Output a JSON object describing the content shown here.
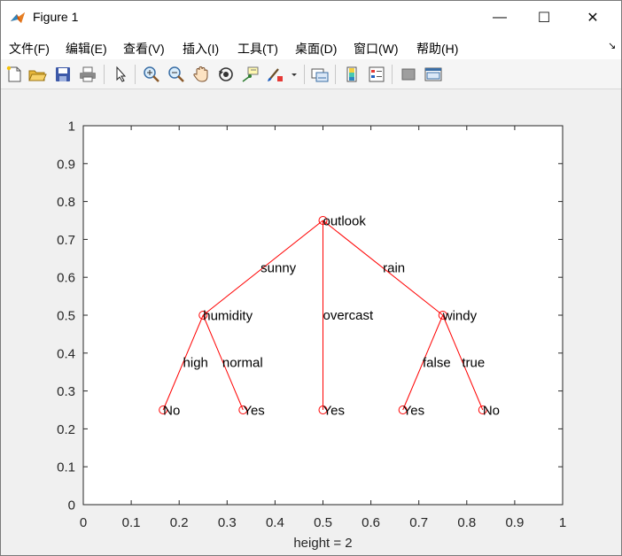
{
  "window": {
    "title": "Figure 1",
    "controls": {
      "minimize": "—",
      "maximize": "☐",
      "close": "✕"
    }
  },
  "menu": {
    "items": [
      "文件(F)",
      "编辑(E)",
      "查看(V)",
      "插入(I)",
      "工具(T)",
      "桌面(D)",
      "窗口(W)",
      "帮助(H)"
    ],
    "overflow_arrow": "↘"
  },
  "toolbar": {
    "buttons": [
      "new-figure-icon",
      "open-file-icon",
      "save-icon",
      "print-icon",
      "edit-plot-arrow-icon",
      "zoom-in-icon",
      "zoom-out-icon",
      "pan-hand-icon",
      "rotate-3d-icon",
      "data-cursor-icon",
      "brush-icon",
      "brush-dropdown-icon",
      "link-plot-icon",
      "colorbar-icon",
      "legend-icon",
      "hide-plot-tools-icon",
      "show-plot-tools-icon"
    ]
  },
  "colors": {
    "tree": "#ff0000",
    "axes": "#262626",
    "grid_bg": "#ffffff",
    "figure_bg": "#f0f0f0"
  },
  "chart_data": {
    "type": "scatter",
    "title": "",
    "xlabel": "height = 2",
    "ylabel": "",
    "xlim": [
      0,
      1
    ],
    "ylim": [
      0,
      1
    ],
    "xticks": [
      "0",
      "0.1",
      "0.2",
      "0.3",
      "0.4",
      "0.5",
      "0.6",
      "0.7",
      "0.8",
      "0.9",
      "1"
    ],
    "yticks": [
      "0",
      "0.1",
      "0.2",
      "0.3",
      "0.4",
      "0.5",
      "0.6",
      "0.7",
      "0.8",
      "0.9",
      "1"
    ],
    "grid": false,
    "nodes": [
      {
        "id": "outlook",
        "label": "outlook",
        "x": 0.5,
        "y": 0.75
      },
      {
        "id": "humidity",
        "label": "humidity",
        "x": 0.25,
        "y": 0.5
      },
      {
        "id": "overcast-yes",
        "label": "Yes",
        "x": 0.5,
        "y": 0.25
      },
      {
        "id": "windy",
        "label": "windy",
        "x": 0.75,
        "y": 0.5
      },
      {
        "id": "high-no",
        "label": "No",
        "x": 0.1667,
        "y": 0.25
      },
      {
        "id": "normal-yes",
        "label": "Yes",
        "x": 0.3333,
        "y": 0.25
      },
      {
        "id": "false-yes",
        "label": "Yes",
        "x": 0.6667,
        "y": 0.25
      },
      {
        "id": "true-no",
        "label": "No",
        "x": 0.8333,
        "y": 0.25
      }
    ],
    "edges": [
      {
        "from": "outlook",
        "to": "humidity",
        "label": "sunny",
        "lx": 0.37,
        "ly": 0.625
      },
      {
        "from": "outlook",
        "to": "overcast-yes",
        "label": "overcast",
        "lx": 0.5,
        "ly": 0.5
      },
      {
        "from": "outlook",
        "to": "windy",
        "label": "rain",
        "lx": 0.625,
        "ly": 0.625
      },
      {
        "from": "humidity",
        "to": "high-no",
        "label": "high",
        "lx": 0.208,
        "ly": 0.375
      },
      {
        "from": "humidity",
        "to": "normal-yes",
        "label": "normal",
        "lx": 0.29,
        "ly": 0.375
      },
      {
        "from": "windy",
        "to": "false-yes",
        "label": "false",
        "lx": 0.708,
        "ly": 0.375
      },
      {
        "from": "windy",
        "to": "true-no",
        "label": "true",
        "lx": 0.79,
        "ly": 0.375
      }
    ]
  }
}
